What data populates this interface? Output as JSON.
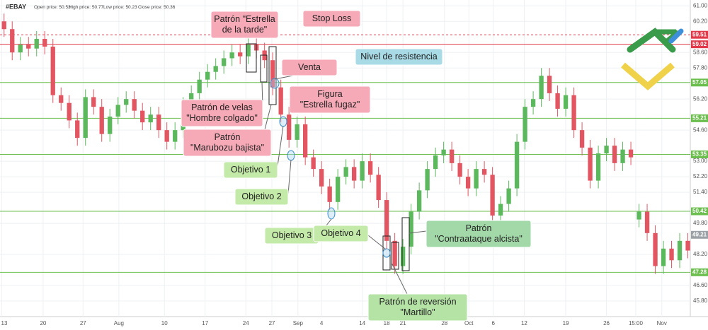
{
  "chart_data": {
    "type": "candlestick",
    "header": {
      "symbol": "#EBAY",
      "fields": [
        {
          "label": "Open price:",
          "value": 50.53
        },
        {
          "label": "High price:",
          "value": 50.77
        },
        {
          "label": "Low price:",
          "value": 50.23
        },
        {
          "label": "Close price:",
          "value": 50.36
        }
      ]
    },
    "open": [
      60.2,
      59.8,
      58.6,
      59.0,
      58.8,
      59.3,
      58.9,
      56.4,
      56.0,
      55.1,
      54.2,
      56.3,
      55.8,
      54.4,
      55.3,
      55.9,
      56.2,
      55.6,
      55.0,
      55.4,
      54.6,
      54.0,
      54.6,
      55.9,
      56.5,
      57.2,
      57.6,
      57.9,
      58.3,
      58.6,
      58.4,
      59.0,
      58.7,
      58.2,
      56.8,
      55.4,
      54.1,
      54.9,
      53.2,
      52.6,
      51.7,
      50.9,
      52.2,
      52.7,
      52.0,
      53.0,
      52.3,
      51.0,
      48.9,
      47.6,
      48.6,
      50.4,
      51.5,
      52.6,
      53.3,
      53.6,
      52.9,
      52.2,
      51.6,
      52.6,
      52.3,
      50.2,
      50.8,
      51.6,
      54.0,
      55.8,
      56.2,
      57.4,
      56.5,
      55.7,
      56.4,
      54.6,
      53.7,
      52.0,
      53.4,
      53.8,
      52.9,
      53.6,
      50.0,
      50.4,
      49.3,
      47.6,
      48.5,
      47.9,
      48.9
    ],
    "high": [
      60.6,
      60.2,
      59.4,
      59.4,
      59.7,
      59.7,
      59.3,
      56.8,
      56.4,
      55.5,
      56.7,
      56.7,
      56.2,
      55.7,
      56.3,
      56.6,
      56.6,
      56.0,
      55.8,
      55.8,
      55.0,
      55.0,
      56.3,
      56.9,
      57.6,
      58.0,
      58.3,
      58.7,
      59.0,
      59.0,
      59.4,
      59.4,
      59.1,
      58.6,
      57.2,
      55.8,
      55.3,
      55.3,
      53.6,
      53.0,
      52.1,
      52.6,
      53.1,
      53.1,
      53.4,
      53.4,
      52.7,
      51.4,
      49.3,
      49.0,
      50.8,
      51.9,
      53.0,
      53.7,
      54.0,
      54.0,
      53.3,
      52.6,
      53.0,
      53.0,
      52.7,
      51.2,
      52.0,
      54.4,
      56.2,
      56.6,
      57.8,
      57.8,
      56.9,
      56.8,
      56.8,
      55.0,
      54.1,
      53.8,
      54.2,
      54.2,
      54.0,
      54.0,
      50.8,
      50.8,
      49.7,
      48.9,
      48.9,
      49.3,
      49.3
    ],
    "low": [
      59.4,
      58.2,
      58.2,
      58.4,
      58.4,
      58.5,
      56.0,
      55.6,
      54.7,
      53.8,
      53.8,
      55.4,
      54.0,
      54.0,
      54.9,
      55.5,
      55.2,
      54.6,
      54.6,
      54.2,
      53.6,
      53.6,
      54.2,
      55.5,
      56.1,
      56.8,
      57.2,
      57.5,
      57.9,
      58.0,
      58.0,
      58.3,
      57.8,
      56.4,
      55.0,
      53.7,
      53.7,
      52.8,
      52.2,
      51.3,
      50.5,
      50.5,
      51.8,
      51.6,
      51.6,
      51.9,
      50.6,
      48.5,
      47.2,
      47.2,
      48.2,
      50.0,
      51.1,
      52.2,
      52.9,
      52.5,
      51.8,
      51.2,
      51.2,
      51.9,
      49.8,
      49.8,
      50.4,
      51.2,
      53.6,
      55.4,
      55.8,
      56.1,
      55.3,
      55.3,
      54.2,
      53.3,
      51.6,
      51.6,
      53.0,
      52.5,
      52.5,
      52.8,
      49.6,
      48.9,
      47.2,
      47.2,
      47.5,
      47.5,
      48.0
    ],
    "close": [
      59.8,
      58.6,
      59.0,
      58.8,
      59.3,
      58.9,
      56.4,
      56.0,
      55.1,
      54.2,
      56.3,
      55.8,
      54.4,
      55.3,
      55.9,
      56.2,
      55.6,
      55.0,
      55.4,
      54.6,
      54.0,
      54.6,
      55.9,
      56.5,
      57.2,
      57.6,
      57.9,
      58.3,
      58.6,
      58.4,
      59.0,
      58.7,
      58.2,
      56.8,
      55.4,
      54.1,
      54.9,
      53.2,
      52.6,
      51.7,
      50.9,
      52.2,
      52.7,
      52.0,
      53.0,
      52.3,
      51.0,
      48.9,
      47.6,
      48.6,
      50.4,
      51.5,
      52.6,
      53.3,
      53.6,
      52.9,
      52.2,
      51.6,
      52.6,
      52.3,
      50.2,
      50.8,
      51.6,
      54.0,
      55.8,
      56.2,
      57.4,
      56.5,
      55.7,
      56.4,
      54.6,
      53.7,
      52.0,
      53.4,
      53.8,
      52.9,
      53.6,
      53.2,
      50.4,
      49.3,
      47.6,
      48.5,
      47.9,
      48.9,
      48.4
    ],
    "up_color": "#5cb85c",
    "down_color": "#e35561",
    "xlim": [
      -0.5,
      84.3
    ],
    "xticks": [
      {
        "value": -0.3,
        "label": "13"
      },
      {
        "value": 4.8,
        "label": "20"
      },
      {
        "value": 9.7,
        "label": "27"
      },
      {
        "value": 14.1,
        "label": "Aug"
      },
      {
        "value": 19.7,
        "label": "10"
      },
      {
        "value": 24.7,
        "label": "17"
      },
      {
        "value": 29.7,
        "label": "24"
      },
      {
        "value": 32.9,
        "label": "27"
      },
      {
        "value": 36.1,
        "label": "Sep"
      },
      {
        "value": 39.0,
        "label": "4"
      },
      {
        "value": 44.0,
        "label": "14"
      },
      {
        "value": 47.0,
        "label": "18"
      },
      {
        "value": 49.0,
        "label": "21"
      },
      {
        "value": 54.1,
        "label": "28"
      },
      {
        "value": 57.1,
        "label": "Oct"
      },
      {
        "value": 60.1,
        "label": "6"
      },
      {
        "value": 63.9,
        "label": "12"
      },
      {
        "value": 69.0,
        "label": "19"
      },
      {
        "value": 74.0,
        "label": "26"
      },
      {
        "value": 77.6,
        "label": "15:00"
      },
      {
        "value": 80.8,
        "label": "Nov"
      }
    ],
    "ylim": [
      45.0,
      61.3
    ],
    "yticks": [
      {
        "value": 61,
        "label": "61.00"
      },
      {
        "value": 60.2,
        "label": "60.20"
      },
      {
        "value": 58.6,
        "label": "58.60"
      },
      {
        "value": 57.8,
        "label": "57.80"
      },
      {
        "value": 56.2,
        "label": "56.20"
      },
      {
        "value": 54.6,
        "label": "54.60"
      },
      {
        "value": 53,
        "label": "53.00"
      },
      {
        "value": 52.2,
        "label": "52.20"
      },
      {
        "value": 51.4,
        "label": "51.40"
      },
      {
        "value": 49.8,
        "label": "49.80"
      },
      {
        "value": 48.2,
        "label": "48.20"
      },
      {
        "value": 46.6,
        "label": "46.60"
      },
      {
        "value": 45.8,
        "label": "45.80"
      }
    ],
    "grid": true,
    "levels": [
      {
        "value": 59.51,
        "color": "#e0394a",
        "dashed": true
      },
      {
        "value": 59.02,
        "color": "#e0394a",
        "dashed": false
      },
      {
        "value": 57.05,
        "color": "#6cbf4f",
        "dashed": false
      },
      {
        "value": 55.21,
        "color": "#6cbf4f",
        "dashed": false
      },
      {
        "value": 53.35,
        "color": "#6cbf4f",
        "dashed": false
      },
      {
        "value": 50.42,
        "color": "#6cbf4f",
        "dashed": false
      },
      {
        "value": 47.28,
        "color": "#6cbf4f",
        "dashed": false
      }
    ],
    "last_price": {
      "value": 49.21,
      "color": "#9aa0a6"
    },
    "annotations": [
      {
        "lines": [
          "Patrón \"Estrella",
          "de la tarde\""
        ],
        "color": "#f6a9b6"
      },
      {
        "lines": [
          "Stop Loss"
        ],
        "color": "#f6a9b6"
      },
      {
        "lines": [
          "Nivel de resistencia"
        ],
        "color": "#a9dbe6"
      },
      {
        "lines": [
          "Venta"
        ],
        "color": "#f6a9b6"
      },
      {
        "lines": [
          "Figura",
          "\"Estrella fugaz\""
        ],
        "color": "#f6a9b6"
      },
      {
        "lines": [
          "Patrón de velas",
          "\"Hombre colgado\""
        ],
        "color": "#f6a9b6"
      },
      {
        "lines": [
          "Patrón",
          "\"Marubozu bajista\""
        ],
        "color": "#f6a9b6"
      },
      {
        "lines": [
          "Objetivo 1"
        ],
        "color": "#c3eaa8"
      },
      {
        "lines": [
          "Objetivo 2"
        ],
        "color": "#c3eaa8"
      },
      {
        "lines": [
          "Objetivo 3"
        ],
        "color": "#c3eaa8"
      },
      {
        "lines": [
          "Objetivo 4"
        ],
        "color": "#c3eaa8"
      },
      {
        "lines": [
          "Patrón",
          "\"Contraataque alcista\""
        ],
        "color": "#a3d9a8"
      },
      {
        "lines": [
          "Patrón de reversión",
          "\"Martillo\""
        ],
        "color": "#b5e3a6"
      }
    ]
  }
}
